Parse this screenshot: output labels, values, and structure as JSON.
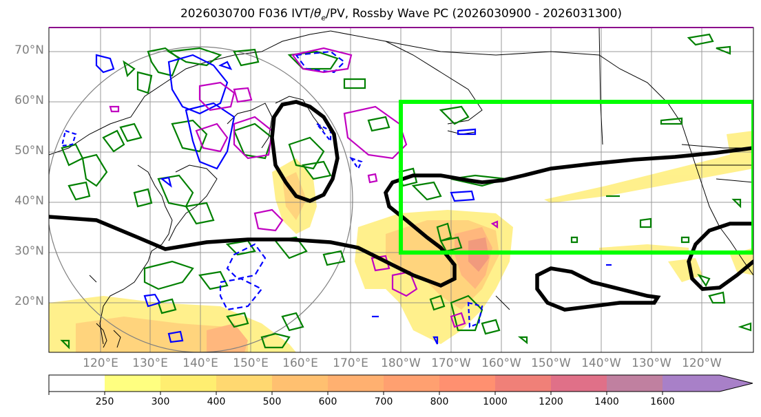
{
  "title": "2026030700 F036 IVT/θe/PV, Rossby Wave PC (2026030900 - 2026031300)",
  "title_parts": {
    "prefix": "2026030700 F036 IVT/",
    "theta": "θ",
    "theta_sub": "e",
    "suffix": "/PV, Rossby Wave PC (2026030900 - 2026031300)"
  },
  "lat_labels": [
    "70°N",
    "60°N",
    "50°N",
    "40°N",
    "30°N",
    "20°N"
  ],
  "lon_labels": [
    "120°E",
    "130°E",
    "140°E",
    "150°E",
    "160°E",
    "170°E",
    "180°W",
    "170°W",
    "160°W",
    "150°W",
    "140°W",
    "130°W",
    "120°W"
  ],
  "colorbar": {
    "ticks": [
      "250",
      "300",
      "400",
      "500",
      "600",
      "700",
      "800",
      "1000",
      "1200",
      "1400",
      "1600"
    ],
    "colors": [
      "#ffff80",
      "#ffee70",
      "#ffd870",
      "#ffc070",
      "#ffb070",
      "#ffa070",
      "#ff9070",
      "#f08078",
      "#e07088",
      "#c080a0",
      "#a880c8"
    ]
  },
  "colors": {
    "green_box": "#00ff00",
    "pv_green": "#008000",
    "blue_contour": "#0000ff",
    "magenta_contour": "#c000c0",
    "black_contour": "#000000",
    "grid": "#808080"
  }
}
